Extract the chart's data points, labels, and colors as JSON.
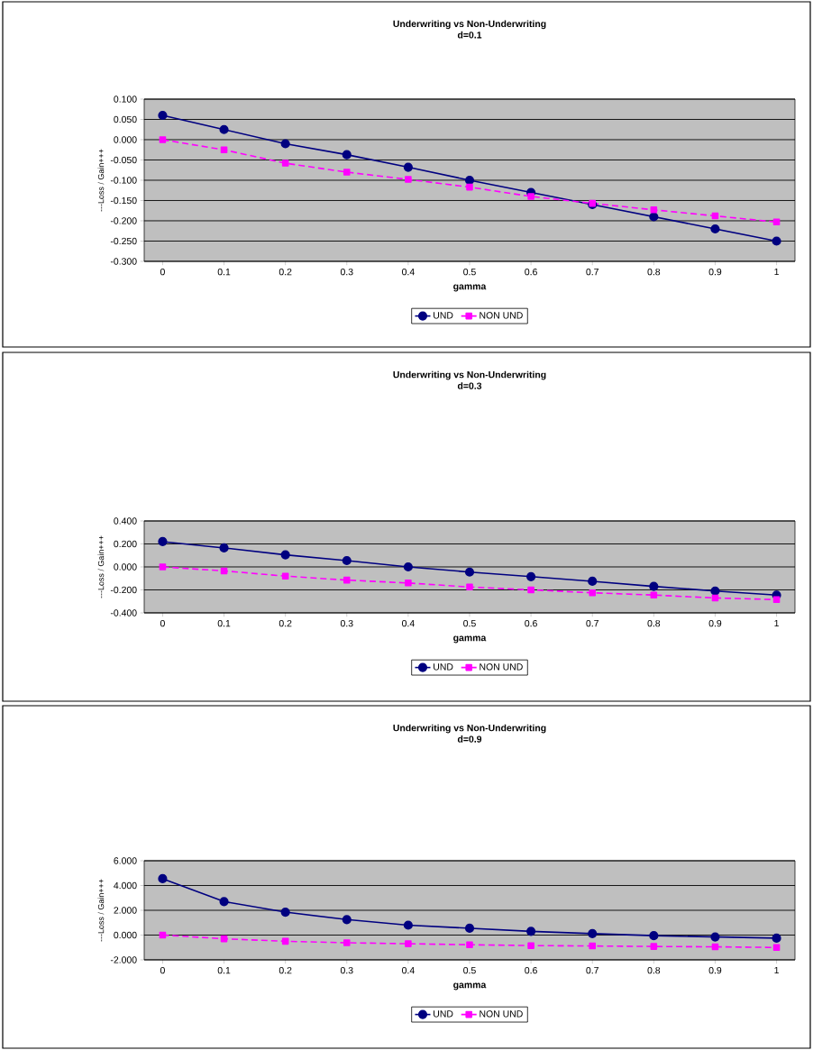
{
  "chart_data": [
    {
      "type": "line",
      "title": "Underwriting vs Non-Underwriting",
      "subtitle": "d=0.1",
      "xlabel": "gamma",
      "ylabel": "---Loss / Gain+++",
      "categories": [
        "0",
        "0.1",
        "0.2",
        "0.3",
        "0.4",
        "0.5",
        "0.6",
        "0.7",
        "0.8",
        "0.9",
        "1"
      ],
      "series": [
        {
          "name": "UND",
          "color": "#000080",
          "marker": "circle",
          "line_style": "solid",
          "values": [
            0.06,
            0.025,
            -0.01,
            -0.037,
            -0.068,
            -0.1,
            -0.13,
            -0.16,
            -0.19,
            -0.22,
            -0.25
          ]
        },
        {
          "name": "NON UND",
          "color": "#ff00ff",
          "marker": "square",
          "line_style": "dashed",
          "values": [
            0.0,
            -0.025,
            -0.058,
            -0.08,
            -0.098,
            -0.117,
            -0.14,
            -0.157,
            -0.173,
            -0.188,
            -0.203
          ]
        }
      ],
      "ylim": [
        -0.3,
        0.1
      ],
      "yticks": [
        {
          "value": 0.1,
          "label": "0.100"
        },
        {
          "value": 0.05,
          "label": "0.050"
        },
        {
          "value": 0,
          "label": "0.000"
        },
        {
          "value": -0.05,
          "label": "-0.050"
        },
        {
          "value": -0.1,
          "label": "-0.100"
        },
        {
          "value": -0.15,
          "label": "-0.150"
        },
        {
          "value": -0.2,
          "label": "-0.200"
        },
        {
          "value": -0.25,
          "label": "-0.250"
        },
        {
          "value": -0.3,
          "label": "-0.300"
        }
      ],
      "grid": "y",
      "legend": "bottom"
    },
    {
      "type": "line",
      "title": "Underwriting vs Non-Underwriting",
      "subtitle": "d=0.3",
      "xlabel": "gamma",
      "ylabel": "---Loss / Gain+++",
      "categories": [
        "0",
        "0.1",
        "0.2",
        "0.3",
        "0.4",
        "0.5",
        "0.6",
        "0.7",
        "0.8",
        "0.9",
        "1"
      ],
      "series": [
        {
          "name": "UND",
          "color": "#000080",
          "marker": "circle",
          "line_style": "solid",
          "values": [
            0.22,
            0.165,
            0.105,
            0.055,
            0.0,
            -0.045,
            -0.085,
            -0.125,
            -0.17,
            -0.21,
            -0.245
          ]
        },
        {
          "name": "NON UND",
          "color": "#ff00ff",
          "marker": "square",
          "line_style": "dashed",
          "values": [
            0.0,
            -0.035,
            -0.08,
            -0.115,
            -0.14,
            -0.175,
            -0.2,
            -0.225,
            -0.245,
            -0.27,
            -0.285
          ]
        }
      ],
      "ylim": [
        -0.4,
        0.4
      ],
      "yticks": [
        {
          "value": 0.4,
          "label": "0.400"
        },
        {
          "value": 0.2,
          "label": "0.200"
        },
        {
          "value": 0,
          "label": "0.000"
        },
        {
          "value": -0.2,
          "label": "-0.200"
        },
        {
          "value": -0.4,
          "label": "-0.400"
        }
      ],
      "grid": "y",
      "legend": "bottom"
    },
    {
      "type": "line",
      "title": "Underwriting vs Non-Underwriting",
      "subtitle": "d=0.9",
      "xlabel": "gamma",
      "ylabel": "---Loss / Gain+++",
      "categories": [
        "0",
        "0.1",
        "0.2",
        "0.3",
        "0.4",
        "0.5",
        "0.6",
        "0.7",
        "0.8",
        "0.9",
        "1"
      ],
      "series": [
        {
          "name": "UND",
          "color": "#000080",
          "marker": "circle",
          "line_style": "solid",
          "values": [
            4.55,
            2.7,
            1.85,
            1.25,
            0.8,
            0.55,
            0.3,
            0.12,
            -0.05,
            -0.15,
            -0.25
          ]
        },
        {
          "name": "NON UND",
          "color": "#ff00ff",
          "marker": "square",
          "line_style": "dashed",
          "values": [
            0.0,
            -0.3,
            -0.5,
            -0.62,
            -0.7,
            -0.78,
            -0.85,
            -0.88,
            -0.92,
            -0.95,
            -1.0
          ]
        }
      ],
      "ylim": [
        -2,
        6
      ],
      "yticks": [
        {
          "value": 6,
          "label": "6.000"
        },
        {
          "value": 4,
          "label": "4.000"
        },
        {
          "value": 2,
          "label": "2.000"
        },
        {
          "value": 0,
          "label": "0.000"
        },
        {
          "value": -2,
          "label": "-2.000"
        }
      ],
      "grid": "y",
      "legend": "bottom"
    }
  ]
}
